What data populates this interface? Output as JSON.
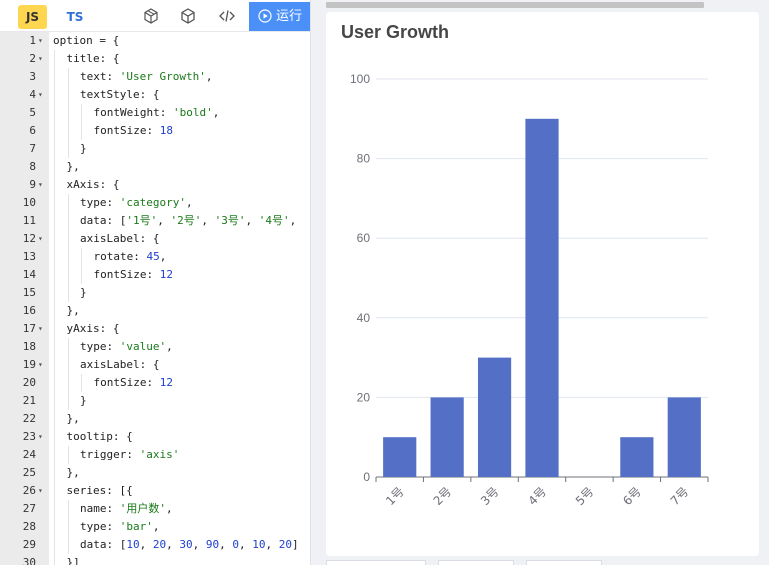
{
  "toolbar": {
    "js_label": "JS",
    "ts_label": "TS",
    "icons": [
      "cube-outline-icon",
      "cube-icon",
      "code-icon"
    ],
    "run_label": "运行",
    "run_icon": "play-circle-icon",
    "run_color": "#4a90f8"
  },
  "code_lines": [
    {
      "n": "1",
      "fold": true,
      "indent": 0,
      "tokens": [
        [
          "p",
          "option = {"
        ]
      ]
    },
    {
      "n": "2",
      "fold": true,
      "indent": 1,
      "tokens": [
        [
          "p",
          "title: {"
        ]
      ]
    },
    {
      "n": "3",
      "fold": false,
      "indent": 2,
      "tokens": [
        [
          "p",
          "text: "
        ],
        [
          "s",
          "'User Growth'"
        ],
        [
          "p",
          ","
        ]
      ]
    },
    {
      "n": "4",
      "fold": true,
      "indent": 2,
      "tokens": [
        [
          "p",
          "textStyle: {"
        ]
      ]
    },
    {
      "n": "5",
      "fold": false,
      "indent": 3,
      "tokens": [
        [
          "p",
          "fontWeight: "
        ],
        [
          "s",
          "'bold'"
        ],
        [
          "p",
          ","
        ]
      ]
    },
    {
      "n": "6",
      "fold": false,
      "indent": 3,
      "tokens": [
        [
          "p",
          "fontSize: "
        ],
        [
          "n",
          "18"
        ]
      ]
    },
    {
      "n": "7",
      "fold": false,
      "indent": 2,
      "tokens": [
        [
          "p",
          "}"
        ]
      ]
    },
    {
      "n": "8",
      "fold": false,
      "indent": 1,
      "tokens": [
        [
          "p",
          "},"
        ]
      ]
    },
    {
      "n": "9",
      "fold": true,
      "indent": 1,
      "tokens": [
        [
          "p",
          "xAxis: {"
        ]
      ]
    },
    {
      "n": "10",
      "fold": false,
      "indent": 2,
      "tokens": [
        [
          "p",
          "type: "
        ],
        [
          "s",
          "'category'"
        ],
        [
          "p",
          ","
        ]
      ]
    },
    {
      "n": "11",
      "fold": false,
      "indent": 2,
      "tokens": [
        [
          "p",
          "data: ["
        ],
        [
          "s",
          "'1号'"
        ],
        [
          "p",
          ", "
        ],
        [
          "s",
          "'2号'"
        ],
        [
          "p",
          ", "
        ],
        [
          "s",
          "'3号'"
        ],
        [
          "p",
          ", "
        ],
        [
          "s",
          "'4号'"
        ],
        [
          "p",
          ","
        ]
      ]
    },
    {
      "n": "12",
      "fold": true,
      "indent": 2,
      "tokens": [
        [
          "p",
          "axisLabel: {"
        ]
      ]
    },
    {
      "n": "13",
      "fold": false,
      "indent": 3,
      "tokens": [
        [
          "p",
          "rotate: "
        ],
        [
          "n",
          "45"
        ],
        [
          "p",
          ","
        ]
      ]
    },
    {
      "n": "14",
      "fold": false,
      "indent": 3,
      "tokens": [
        [
          "p",
          "fontSize: "
        ],
        [
          "n",
          "12"
        ]
      ]
    },
    {
      "n": "15",
      "fold": false,
      "indent": 2,
      "tokens": [
        [
          "p",
          "}"
        ]
      ]
    },
    {
      "n": "16",
      "fold": false,
      "indent": 1,
      "tokens": [
        [
          "p",
          "},"
        ]
      ]
    },
    {
      "n": "17",
      "fold": true,
      "indent": 1,
      "tokens": [
        [
          "p",
          "yAxis: {"
        ]
      ]
    },
    {
      "n": "18",
      "fold": false,
      "indent": 2,
      "tokens": [
        [
          "p",
          "type: "
        ],
        [
          "s",
          "'value'"
        ],
        [
          "p",
          ","
        ]
      ]
    },
    {
      "n": "19",
      "fold": true,
      "indent": 2,
      "tokens": [
        [
          "p",
          "axisLabel: {"
        ]
      ]
    },
    {
      "n": "20",
      "fold": false,
      "indent": 3,
      "tokens": [
        [
          "p",
          "fontSize: "
        ],
        [
          "n",
          "12"
        ]
      ]
    },
    {
      "n": "21",
      "fold": false,
      "indent": 2,
      "tokens": [
        [
          "p",
          "}"
        ]
      ]
    },
    {
      "n": "22",
      "fold": false,
      "indent": 1,
      "tokens": [
        [
          "p",
          "},"
        ]
      ]
    },
    {
      "n": "23",
      "fold": true,
      "indent": 1,
      "tokens": [
        [
          "p",
          "tooltip: {"
        ]
      ]
    },
    {
      "n": "24",
      "fold": false,
      "indent": 2,
      "tokens": [
        [
          "p",
          "trigger: "
        ],
        [
          "s",
          "'axis'"
        ]
      ]
    },
    {
      "n": "25",
      "fold": false,
      "indent": 1,
      "tokens": [
        [
          "p",
          "},"
        ]
      ]
    },
    {
      "n": "26",
      "fold": true,
      "indent": 1,
      "tokens": [
        [
          "p",
          "series: [{"
        ]
      ]
    },
    {
      "n": "27",
      "fold": false,
      "indent": 2,
      "tokens": [
        [
          "p",
          "name: "
        ],
        [
          "s",
          "'用户数'"
        ],
        [
          "p",
          ","
        ]
      ]
    },
    {
      "n": "28",
      "fold": false,
      "indent": 2,
      "tokens": [
        [
          "p",
          "type: "
        ],
        [
          "s",
          "'bar'"
        ],
        [
          "p",
          ","
        ]
      ]
    },
    {
      "n": "29",
      "fold": false,
      "indent": 2,
      "tokens": [
        [
          "p",
          "data: ["
        ],
        [
          "n",
          "10"
        ],
        [
          "p",
          ", "
        ],
        [
          "n",
          "20"
        ],
        [
          "p",
          ", "
        ],
        [
          "n",
          "30"
        ],
        [
          "p",
          ", "
        ],
        [
          "n",
          "90"
        ],
        [
          "p",
          ", "
        ],
        [
          "n",
          "0"
        ],
        [
          "p",
          ", "
        ],
        [
          "n",
          "10"
        ],
        [
          "p",
          ", "
        ],
        [
          "n",
          "20"
        ],
        [
          "p",
          "]"
        ]
      ]
    },
    {
      "n": "30",
      "fold": false,
      "indent": 1,
      "tokens": [
        [
          "p",
          "}]"
        ]
      ]
    }
  ],
  "chart_data": {
    "type": "bar",
    "title": "User Growth",
    "categories": [
      "1号",
      "2号",
      "3号",
      "4号",
      "5号",
      "6号",
      "7号"
    ],
    "series": [
      {
        "name": "用户数",
        "values": [
          10,
          20,
          30,
          90,
          0,
          10,
          20
        ]
      }
    ],
    "ylim": [
      0,
      100
    ],
    "yticks": [
      0,
      20,
      40,
      60,
      80,
      100
    ],
    "xlabel_rotate": 45,
    "grid": true,
    "bar_color": "#5470c6"
  }
}
